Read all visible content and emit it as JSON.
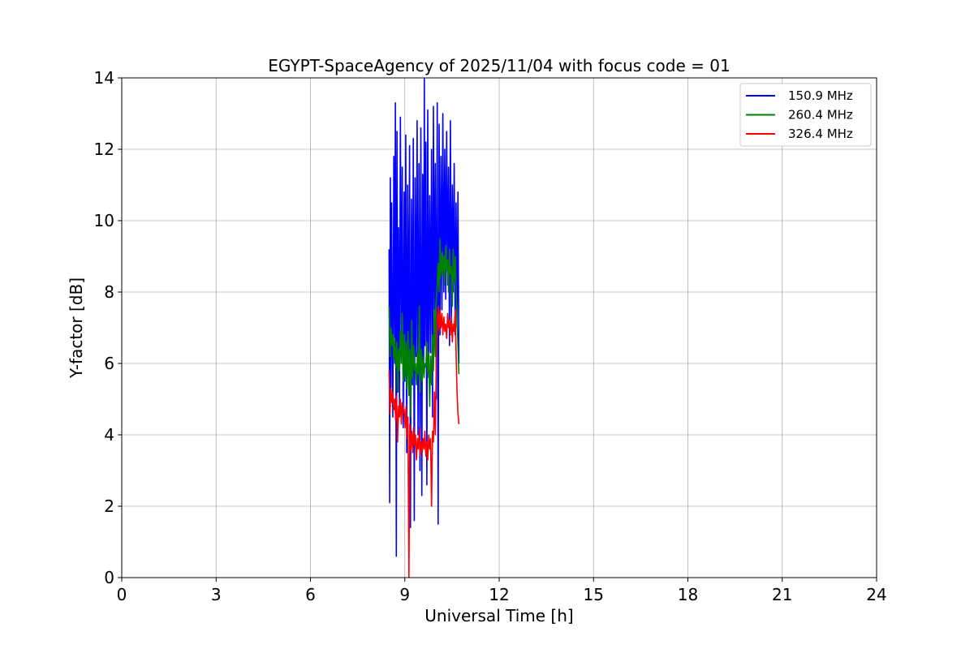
{
  "chart_data": {
    "type": "line",
    "title": "EGYPT-SpaceAgency of 2025/11/04 with focus code = 01",
    "xlabel": "Universal Time [h]",
    "ylabel": "Y-factor [dB]",
    "xlim": [
      0,
      24
    ],
    "ylim": [
      0,
      14
    ],
    "xticks": [
      "0",
      "3",
      "6",
      "9",
      "12",
      "15",
      "18",
      "21",
      "24"
    ],
    "xtick_values": [
      0,
      3,
      6,
      9,
      12,
      15,
      18,
      21,
      24
    ],
    "yticks": [
      "0",
      "2",
      "4",
      "6",
      "8",
      "10",
      "12",
      "14"
    ],
    "ytick_values": [
      0,
      2,
      4,
      6,
      8,
      10,
      12,
      14
    ],
    "grid": true,
    "legend_position": "top-right",
    "series": [
      {
        "name": "150.9 MHz",
        "color": "#0000ff",
        "x": [
          8.5,
          8.52,
          8.54,
          8.56,
          8.58,
          8.6,
          8.62,
          8.65,
          8.68,
          8.7,
          8.73,
          8.75,
          8.78,
          8.8,
          8.83,
          8.86,
          8.89,
          8.92,
          8.95,
          8.98,
          9.0,
          9.03,
          9.06,
          9.09,
          9.12,
          9.15,
          9.18,
          9.21,
          9.24,
          9.27,
          9.3,
          9.33,
          9.36,
          9.39,
          9.42,
          9.45,
          9.48,
          9.51,
          9.54,
          9.57,
          9.6,
          9.62,
          9.64,
          9.67,
          9.7,
          9.73,
          9.76,
          9.79,
          9.82,
          9.85,
          9.88,
          9.91,
          9.94,
          9.97,
          10.0,
          10.03,
          10.06,
          10.09,
          10.12,
          10.15,
          10.18,
          10.21,
          10.24,
          10.27,
          10.3,
          10.33,
          10.36,
          10.39,
          10.42,
          10.45,
          10.48,
          10.51,
          10.54,
          10.57,
          10.6,
          10.63,
          10.66,
          10.69,
          10.72
        ],
        "values": [
          9.2,
          2.1,
          11.2,
          5.0,
          10.5,
          7.2,
          4.5,
          11.8,
          6.0,
          13.3,
          0.6,
          12.5,
          5.2,
          9.8,
          4.8,
          12.9,
          6.5,
          11.5,
          4.2,
          10.8,
          5.5,
          12.4,
          3.5,
          11.0,
          6.0,
          12.1,
          1.4,
          10.6,
          5.4,
          12.3,
          1.6,
          11.2,
          6.2,
          12.8,
          4.0,
          11.6,
          3.0,
          12.6,
          2.3,
          11.3,
          5.8,
          14.0,
          6.5,
          12.2,
          2.6,
          13.1,
          5.6,
          10.7,
          6.3,
          12.0,
          4.5,
          13.2,
          7.0,
          11.6,
          5.0,
          13.3,
          1.5,
          12.7,
          6.8,
          11.8,
          7.5,
          13.0,
          8.0,
          12.0,
          7.8,
          12.5,
          8.2,
          11.5,
          6.5,
          12.8,
          7.2,
          11.0,
          8.0,
          11.6,
          6.8,
          10.5,
          7.0,
          10.8,
          6.0
        ]
      },
      {
        "name": "260.4 MHz",
        "color": "#008000",
        "x": [
          8.5,
          8.53,
          8.56,
          8.59,
          8.62,
          8.65,
          8.68,
          8.71,
          8.74,
          8.77,
          8.8,
          8.83,
          8.86,
          8.89,
          8.92,
          8.95,
          8.98,
          9.01,
          9.04,
          9.07,
          9.1,
          9.13,
          9.16,
          9.19,
          9.22,
          9.25,
          9.28,
          9.31,
          9.34,
          9.37,
          9.4,
          9.43,
          9.46,
          9.49,
          9.52,
          9.55,
          9.58,
          9.61,
          9.64,
          9.67,
          9.7,
          9.73,
          9.76,
          9.79,
          9.82,
          9.85,
          9.88,
          9.91,
          9.94,
          9.97,
          10.0,
          10.03,
          10.06,
          10.09,
          10.12,
          10.15,
          10.18,
          10.21,
          10.24,
          10.27,
          10.3,
          10.33,
          10.36,
          10.39,
          10.42,
          10.45,
          10.48,
          10.51,
          10.54,
          10.57,
          10.6,
          10.63,
          10.66,
          10.69,
          10.72
        ],
        "values": [
          7.6,
          6.2,
          7.0,
          6.5,
          6.8,
          6.1,
          6.7,
          5.9,
          6.6,
          5.2,
          6.4,
          5.8,
          6.9,
          6.0,
          7.4,
          5.5,
          6.8,
          5.6,
          6.6,
          5.3,
          6.9,
          5.1,
          6.4,
          4.5,
          7.2,
          5.6,
          6.5,
          5.8,
          6.0,
          5.4,
          6.3,
          5.7,
          7.6,
          5.2,
          6.4,
          5.5,
          6.2,
          5.6,
          6.0,
          5.9,
          6.6,
          5.7,
          6.3,
          4.8,
          6.2,
          5.4,
          6.8,
          5.8,
          7.5,
          6.2,
          7.8,
          8.2,
          8.8,
          8.0,
          9.5,
          8.4,
          9.1,
          8.5,
          9.0,
          8.2,
          9.3,
          8.6,
          8.9,
          8.0,
          9.2,
          8.5,
          8.7,
          7.6,
          9.2,
          8.3,
          9.0,
          8.1,
          7.2,
          6.5,
          5.7
        ]
      },
      {
        "name": "326.4 MHz",
        "color": "#ff0000",
        "x": [
          8.5,
          8.53,
          8.56,
          8.59,
          8.62,
          8.65,
          8.68,
          8.71,
          8.74,
          8.77,
          8.8,
          8.83,
          8.86,
          8.89,
          8.92,
          8.95,
          8.98,
          9.01,
          9.04,
          9.07,
          9.1,
          9.13,
          9.16,
          9.19,
          9.22,
          9.25,
          9.28,
          9.31,
          9.34,
          9.37,
          9.4,
          9.43,
          9.46,
          9.49,
          9.52,
          9.55,
          9.58,
          9.61,
          9.64,
          9.67,
          9.7,
          9.73,
          9.76,
          9.79,
          9.82,
          9.85,
          9.88,
          9.91,
          9.94,
          9.97,
          10.0,
          10.03,
          10.06,
          10.09,
          10.12,
          10.15,
          10.18,
          10.21,
          10.24,
          10.27,
          10.3,
          10.33,
          10.36,
          10.39,
          10.42,
          10.45,
          10.48,
          10.51,
          10.54,
          10.57,
          10.6,
          10.63,
          10.66,
          10.69,
          10.72
        ],
        "values": [
          5.8,
          4.6,
          5.3,
          4.9,
          5.2,
          4.7,
          5.0,
          4.4,
          5.1,
          3.8,
          4.8,
          4.5,
          5.0,
          4.3,
          4.9,
          4.6,
          4.7,
          4.2,
          4.8,
          3.9,
          4.5,
          0.0,
          4.3,
          3.6,
          4.1,
          3.5,
          4.2,
          3.7,
          4.0,
          3.3,
          3.9,
          3.6,
          4.2,
          3.4,
          3.8,
          3.5,
          3.9,
          3.6,
          4.1,
          3.4,
          3.8,
          3.3,
          4.0,
          3.6,
          3.9,
          2.0,
          4.1,
          3.8,
          5.2,
          4.0,
          6.0,
          7.2,
          7.6,
          6.9,
          7.5,
          7.0,
          7.4,
          6.8,
          7.3,
          6.9,
          7.1,
          6.7,
          7.4,
          7.0,
          7.2,
          6.8,
          7.3,
          6.6,
          7.1,
          6.9,
          7.5,
          6.3,
          5.2,
          4.6,
          4.3
        ]
      }
    ]
  }
}
